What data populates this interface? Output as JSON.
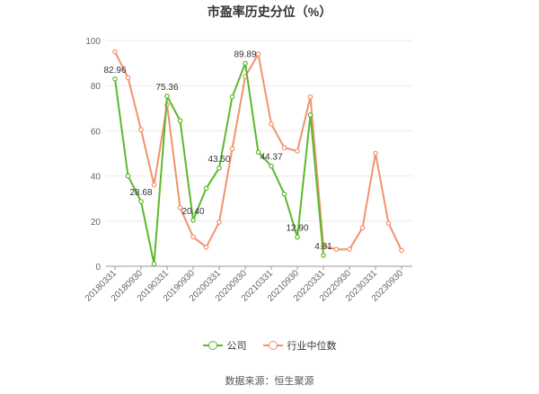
{
  "chart_data": {
    "type": "line",
    "title": "市盈率历史分位（%）",
    "xlabel": "",
    "ylabel": "",
    "ylim": [
      0,
      100
    ],
    "yticks": [
      0,
      20,
      40,
      60,
      80,
      100
    ],
    "x": [
      "20180331",
      "20180630",
      "20180930",
      "20181231",
      "20190331",
      "20190630",
      "20190930",
      "20191231",
      "20200331",
      "20200630",
      "20200930",
      "20201231",
      "20210331",
      "20210630",
      "20210930",
      "20211231",
      "20220331",
      "20220630",
      "20220930",
      "20221231",
      "20230331",
      "20230630",
      "20230930"
    ],
    "x_tick_labels": [
      "20180331",
      "20180930",
      "20190331",
      "20190930",
      "20200331",
      "20200930",
      "20210331",
      "20210930",
      "20220331",
      "20220930",
      "20230331",
      "20230930"
    ],
    "series": [
      {
        "name": "公司",
        "color": "#5cb82e",
        "values": [
          82.96,
          40,
          28.68,
          1,
          75.36,
          64.5,
          20.4,
          34.5,
          43.5,
          75,
          89.89,
          50.5,
          44.37,
          32,
          12.9,
          67,
          4.81,
          null,
          null,
          null,
          null,
          null,
          null
        ],
        "labels": [
          {
            "index": 0,
            "text": "82.96"
          },
          {
            "index": 2,
            "text": "28.68"
          },
          {
            "index": 4,
            "text": "75.36"
          },
          {
            "index": 6,
            "text": "20.40"
          },
          {
            "index": 8,
            "text": "43.50"
          },
          {
            "index": 10,
            "text": "89.89"
          },
          {
            "index": 12,
            "text": "44.37"
          },
          {
            "index": 14,
            "text": "12.90"
          },
          {
            "index": 16,
            "text": "4.81"
          }
        ]
      },
      {
        "name": "行业中位数",
        "color": "#f0936c",
        "values": [
          95,
          83.5,
          60.5,
          36,
          71.5,
          26,
          13,
          8.5,
          19.5,
          52,
          84,
          94,
          63,
          52.5,
          51,
          75,
          9,
          7.5,
          7.5,
          17,
          50,
          19,
          7
        ]
      }
    ],
    "legend_position": "bottom",
    "grid": true
  },
  "source_text": "数据来源：恒生聚源"
}
